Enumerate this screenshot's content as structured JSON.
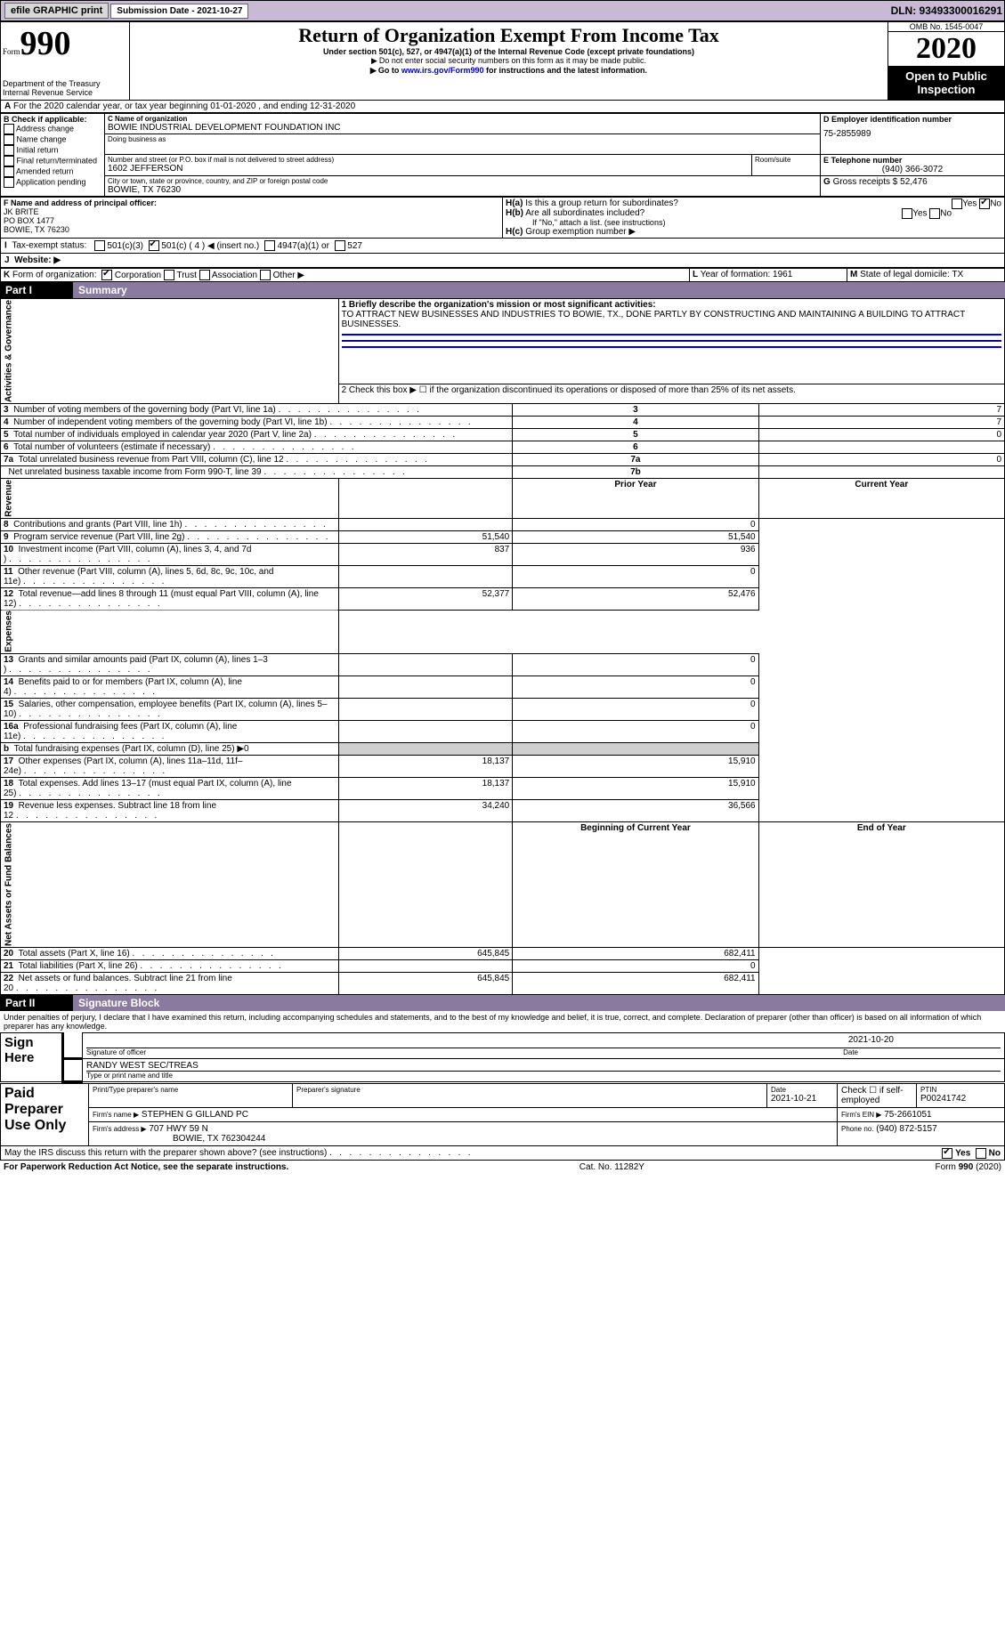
{
  "topbar": {
    "btn1": "efile GRAPHIC print",
    "subdate_label": "Submission Date - 2021-10-27",
    "dln": "DLN: 93493300016291"
  },
  "header": {
    "form_label": "Form",
    "form_num": "990",
    "dept": "Department of the Treasury\nInternal Revenue Service",
    "title": "Return of Organization Exempt From Income Tax",
    "subtitle": "Under section 501(c), 527, or 4947(a)(1) of the Internal Revenue Code (except private foundations)",
    "note1": "Do not enter social security numbers on this form as it may be made public.",
    "note2_pre": "Go to ",
    "note2_link": "www.irs.gov/Form990",
    "note2_post": " for instructions and the latest information.",
    "omb": "OMB No. 1545-0047",
    "year": "2020",
    "open": "Open to Public Inspection"
  },
  "lineA": "For the 2020 calendar year, or tax year beginning 01-01-2020  , and ending 12-31-2020",
  "boxB": {
    "label": "B Check if applicable:",
    "items": [
      "Address change",
      "Name change",
      "Initial return",
      "Final return/terminated",
      "Amended return",
      "Application pending"
    ]
  },
  "boxC": {
    "label": "C Name of organization",
    "org": "BOWIE INDUSTRIAL DEVELOPMENT FOUNDATION INC",
    "dba_label": "Doing business as",
    "addr_label": "Number and street (or P.O. box if mail is not delivered to street address)",
    "room_label": "Room/suite",
    "addr": "1602 JEFFERSON",
    "city_label": "City or town, state or province, country, and ZIP or foreign postal code",
    "city": "BOWIE, TX  76230"
  },
  "boxD": {
    "label": "D Employer identification number",
    "val": "75-2855989"
  },
  "boxE": {
    "label": "E Telephone number",
    "val": "(940) 366-3072"
  },
  "boxG": {
    "label": "G",
    "text": "Gross receipts $ 52,476"
  },
  "boxF": {
    "label": "F  Name and address of principal officer:",
    "lines": "JK BRITE\nPO BOX 1477\nBOWIE, TX  76230"
  },
  "boxH": {
    "a_label": "H(a)",
    "a_text": " Is this a group return for subordinates?",
    "a_yes": "Yes",
    "a_no": "No",
    "b_label": "H(b)",
    "b_text": " Are all subordinates included?",
    "b_yes": "Yes",
    "b_no": "No",
    "b_note": "If \"No,\" attach a list. (see instructions)",
    "c_label": "H(c)",
    "c_text": " Group exemption number ▶"
  },
  "boxI": {
    "label": "I",
    "text": "Tax-exempt status:",
    "opts": [
      "501(c)(3)",
      "501(c) ( 4 ) ◀ (insert no.)",
      "4947(a)(1) or",
      "527"
    ]
  },
  "boxJ": {
    "label": "J",
    "text": "Website: ▶"
  },
  "boxK": {
    "label": "K",
    "text": "Form of organization:",
    "opts": [
      "Corporation",
      "Trust",
      "Association",
      "Other ▶"
    ]
  },
  "boxL": {
    "label": "L",
    "text": "Year of formation: 1961"
  },
  "boxM": {
    "label": "M",
    "text": "State of legal domicile: TX"
  },
  "part1": {
    "title": "Part I",
    "name": "Summary",
    "sections": {
      "ag": "Activities & Governance",
      "rev": "Revenue",
      "exp": "Expenses",
      "na": "Net Assets or Fund Balances"
    },
    "mission_label": "1   Briefly describe the organization's mission or most significant activities:",
    "mission": "TO ATTRACT NEW BUSINESSES AND INDUSTRIES TO BOWIE, TX., DONE PARTLY BY CONSTRUCTING AND MAINTAINING A BUILDING TO ATTRACT BUSINESSES.",
    "line2": "2   Check this box ▶ ☐  if the organization discontinued its operations or disposed of more than 25% of its net assets.",
    "hdr_prior": "Prior Year",
    "hdr_curr": "Current Year",
    "hdr_boy": "Beginning of Current Year",
    "hdr_eoy": "End of Year",
    "rows_ag": [
      {
        "n": "3",
        "t": "Number of voting members of the governing body (Part VI, line 1a)",
        "box": "3",
        "v": "7"
      },
      {
        "n": "4",
        "t": "Number of independent voting members of the governing body (Part VI, line 1b)",
        "box": "4",
        "v": "7"
      },
      {
        "n": "5",
        "t": "Total number of individuals employed in calendar year 2020 (Part V, line 2a)",
        "box": "5",
        "v": "0"
      },
      {
        "n": "6",
        "t": "Total number of volunteers (estimate if necessary)",
        "box": "6",
        "v": ""
      },
      {
        "n": "7a",
        "t": "Total unrelated business revenue from Part VIII, column (C), line 12",
        "box": "7a",
        "v": "0"
      },
      {
        "n": "",
        "t": "Net unrelated business taxable income from Form 990-T, line 39",
        "box": "7b",
        "v": ""
      }
    ],
    "rows_rev": [
      {
        "n": "8",
        "t": "Contributions and grants (Part VIII, line 1h)",
        "p": "",
        "c": "0"
      },
      {
        "n": "9",
        "t": "Program service revenue (Part VIII, line 2g)",
        "p": "51,540",
        "c": "51,540"
      },
      {
        "n": "10",
        "t": "Investment income (Part VIII, column (A), lines 3, 4, and 7d )",
        "p": "837",
        "c": "936"
      },
      {
        "n": "11",
        "t": "Other revenue (Part VIII, column (A), lines 5, 6d, 8c, 9c, 10c, and 11e)",
        "p": "",
        "c": "0"
      },
      {
        "n": "12",
        "t": "Total revenue—add lines 8 through 11 (must equal Part VIII, column (A), line 12)",
        "p": "52,377",
        "c": "52,476"
      }
    ],
    "rows_exp": [
      {
        "n": "13",
        "t": "Grants and similar amounts paid (Part IX, column (A), lines 1–3 )",
        "p": "",
        "c": "0"
      },
      {
        "n": "14",
        "t": "Benefits paid to or for members (Part IX, column (A), line 4)",
        "p": "",
        "c": "0"
      },
      {
        "n": "15",
        "t": "Salaries, other compensation, employee benefits (Part IX, column (A), lines 5–10)",
        "p": "",
        "c": "0"
      },
      {
        "n": "16a",
        "t": "Professional fundraising fees (Part IX, column (A), line 11e)",
        "p": "",
        "c": "0"
      },
      {
        "n": "b",
        "t": "Total fundraising expenses (Part IX, column (D), line 25) ▶0",
        "p": "gray",
        "c": "gray"
      },
      {
        "n": "17",
        "t": "Other expenses (Part IX, column (A), lines 11a–11d, 11f–24e)",
        "p": "18,137",
        "c": "15,910"
      },
      {
        "n": "18",
        "t": "Total expenses. Add lines 13–17 (must equal Part IX, column (A), line 25)",
        "p": "18,137",
        "c": "15,910"
      },
      {
        "n": "19",
        "t": "Revenue less expenses. Subtract line 18 from line 12",
        "p": "34,240",
        "c": "36,566"
      }
    ],
    "rows_na": [
      {
        "n": "20",
        "t": "Total assets (Part X, line 16)",
        "p": "645,845",
        "c": "682,411"
      },
      {
        "n": "21",
        "t": "Total liabilities (Part X, line 26)",
        "p": "",
        "c": "0"
      },
      {
        "n": "22",
        "t": "Net assets or fund balances. Subtract line 21 from line 20",
        "p": "645,845",
        "c": "682,411"
      }
    ]
  },
  "part2": {
    "title": "Part II",
    "name": "Signature Block",
    "penalty": "Under penalties of perjury, I declare that I have examined this return, including accompanying schedules and statements, and to the best of my knowledge and belief, it is true, correct, and complete. Declaration of preparer (other than officer) is based on all information of which preparer has any knowledge."
  },
  "sign": {
    "label": "Sign Here",
    "sig_label": "Signature of officer",
    "date_label": "Date",
    "sig_date": "2021-10-20",
    "name": "RANDY WEST SEC/TREAS",
    "name_label": "Type or print name and title"
  },
  "preparer": {
    "label": "Paid Preparer Use Only",
    "h1": "Print/Type preparer's name",
    "h2": "Preparer's signature",
    "h3": "Date",
    "h3v": "2021-10-21",
    "h4": "Check ☐ if self-employed",
    "h5": "PTIN",
    "h5v": "P00241742",
    "firm_label": "Firm's name  ▶",
    "firm": "STEPHEN G GILLAND PC",
    "ein_label": "Firm's EIN ▶",
    "ein": "75-2661051",
    "addr_label": "Firm's address ▶",
    "addr": "707 HWY 59 N",
    "addr2": "BOWIE, TX  762304244",
    "phone_label": "Phone no.",
    "phone": "(940) 872-5157"
  },
  "discuss": {
    "text": "May the IRS discuss this return with the preparer shown above? (see instructions)",
    "yes": "Yes",
    "no": "No"
  },
  "footer": {
    "left": "For Paperwork Reduction Act Notice, see the separate instructions.",
    "mid": "Cat. No. 11282Y",
    "right": "Form 990 (2020)"
  }
}
